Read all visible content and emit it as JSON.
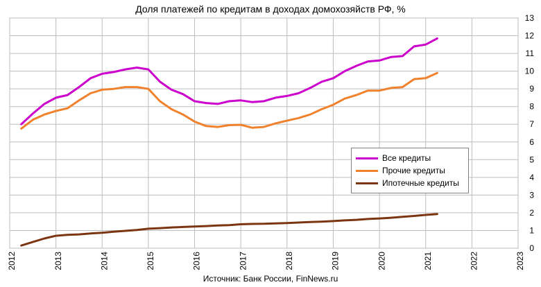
{
  "chart_data": {
    "type": "line",
    "title": "Доля платежей по кредитам в доходах домохозяйств РФ, %",
    "source": "Источник: Банк России, FinNews.ru",
    "xlabel": "",
    "ylabel": "",
    "xlim": [
      2012,
      2023
    ],
    "ylim": [
      0,
      13
    ],
    "x_ticks": [
      "2012",
      "2013",
      "2014",
      "2015",
      "2016",
      "2017",
      "2018",
      "2019",
      "2020",
      "2021",
      "2022",
      "2023"
    ],
    "y_ticks": [
      "0",
      "1",
      "2",
      "3",
      "4",
      "5",
      "6",
      "7",
      "8",
      "9",
      "10",
      "11",
      "12",
      "13"
    ],
    "grid": true,
    "y_axis_side": "right",
    "legend_position": "center-right",
    "x": [
      2012.25,
      2012.5,
      2012.75,
      2013.0,
      2013.25,
      2013.5,
      2013.75,
      2014.0,
      2014.25,
      2014.5,
      2014.75,
      2015.0,
      2015.25,
      2015.5,
      2015.75,
      2016.0,
      2016.25,
      2016.5,
      2016.75,
      2017.0,
      2017.25,
      2017.5,
      2017.75,
      2018.0,
      2018.25,
      2018.5,
      2018.75,
      2019.0,
      2019.25,
      2019.5,
      2019.75,
      2020.0,
      2020.25,
      2020.5,
      2020.75,
      2021.0,
      2021.25
    ],
    "series": [
      {
        "name": "Все кредиты",
        "color": "#cc00cc",
        "values": [
          7.0,
          7.6,
          8.15,
          8.5,
          8.65,
          9.1,
          9.6,
          9.85,
          9.95,
          10.1,
          10.2,
          10.1,
          9.4,
          8.95,
          8.7,
          8.3,
          8.2,
          8.15,
          8.3,
          8.35,
          8.25,
          8.3,
          8.5,
          8.6,
          8.75,
          9.05,
          9.4,
          9.6,
          10.0,
          10.3,
          10.55,
          10.6,
          10.8,
          10.85,
          11.4,
          11.5,
          11.85
        ]
      },
      {
        "name": "Прочие кредиты",
        "color": "#f0822d",
        "values": [
          6.75,
          7.25,
          7.55,
          7.75,
          7.9,
          8.35,
          8.75,
          8.95,
          9.0,
          9.1,
          9.1,
          9.0,
          8.3,
          7.85,
          7.55,
          7.15,
          6.9,
          6.85,
          6.95,
          6.97,
          6.8,
          6.85,
          7.05,
          7.2,
          7.35,
          7.55,
          7.85,
          8.1,
          8.45,
          8.65,
          8.9,
          8.9,
          9.05,
          9.1,
          9.55,
          9.6,
          9.9
        ]
      },
      {
        "name": "Ипотечные кредиты",
        "color": "#7b3510",
        "values": [
          0.15,
          0.35,
          0.55,
          0.7,
          0.75,
          0.78,
          0.83,
          0.87,
          0.93,
          0.98,
          1.03,
          1.1,
          1.13,
          1.17,
          1.2,
          1.22,
          1.25,
          1.28,
          1.3,
          1.35,
          1.37,
          1.38,
          1.4,
          1.42,
          1.45,
          1.48,
          1.5,
          1.53,
          1.57,
          1.6,
          1.65,
          1.68,
          1.72,
          1.77,
          1.82,
          1.88,
          1.93
        ]
      }
    ]
  }
}
